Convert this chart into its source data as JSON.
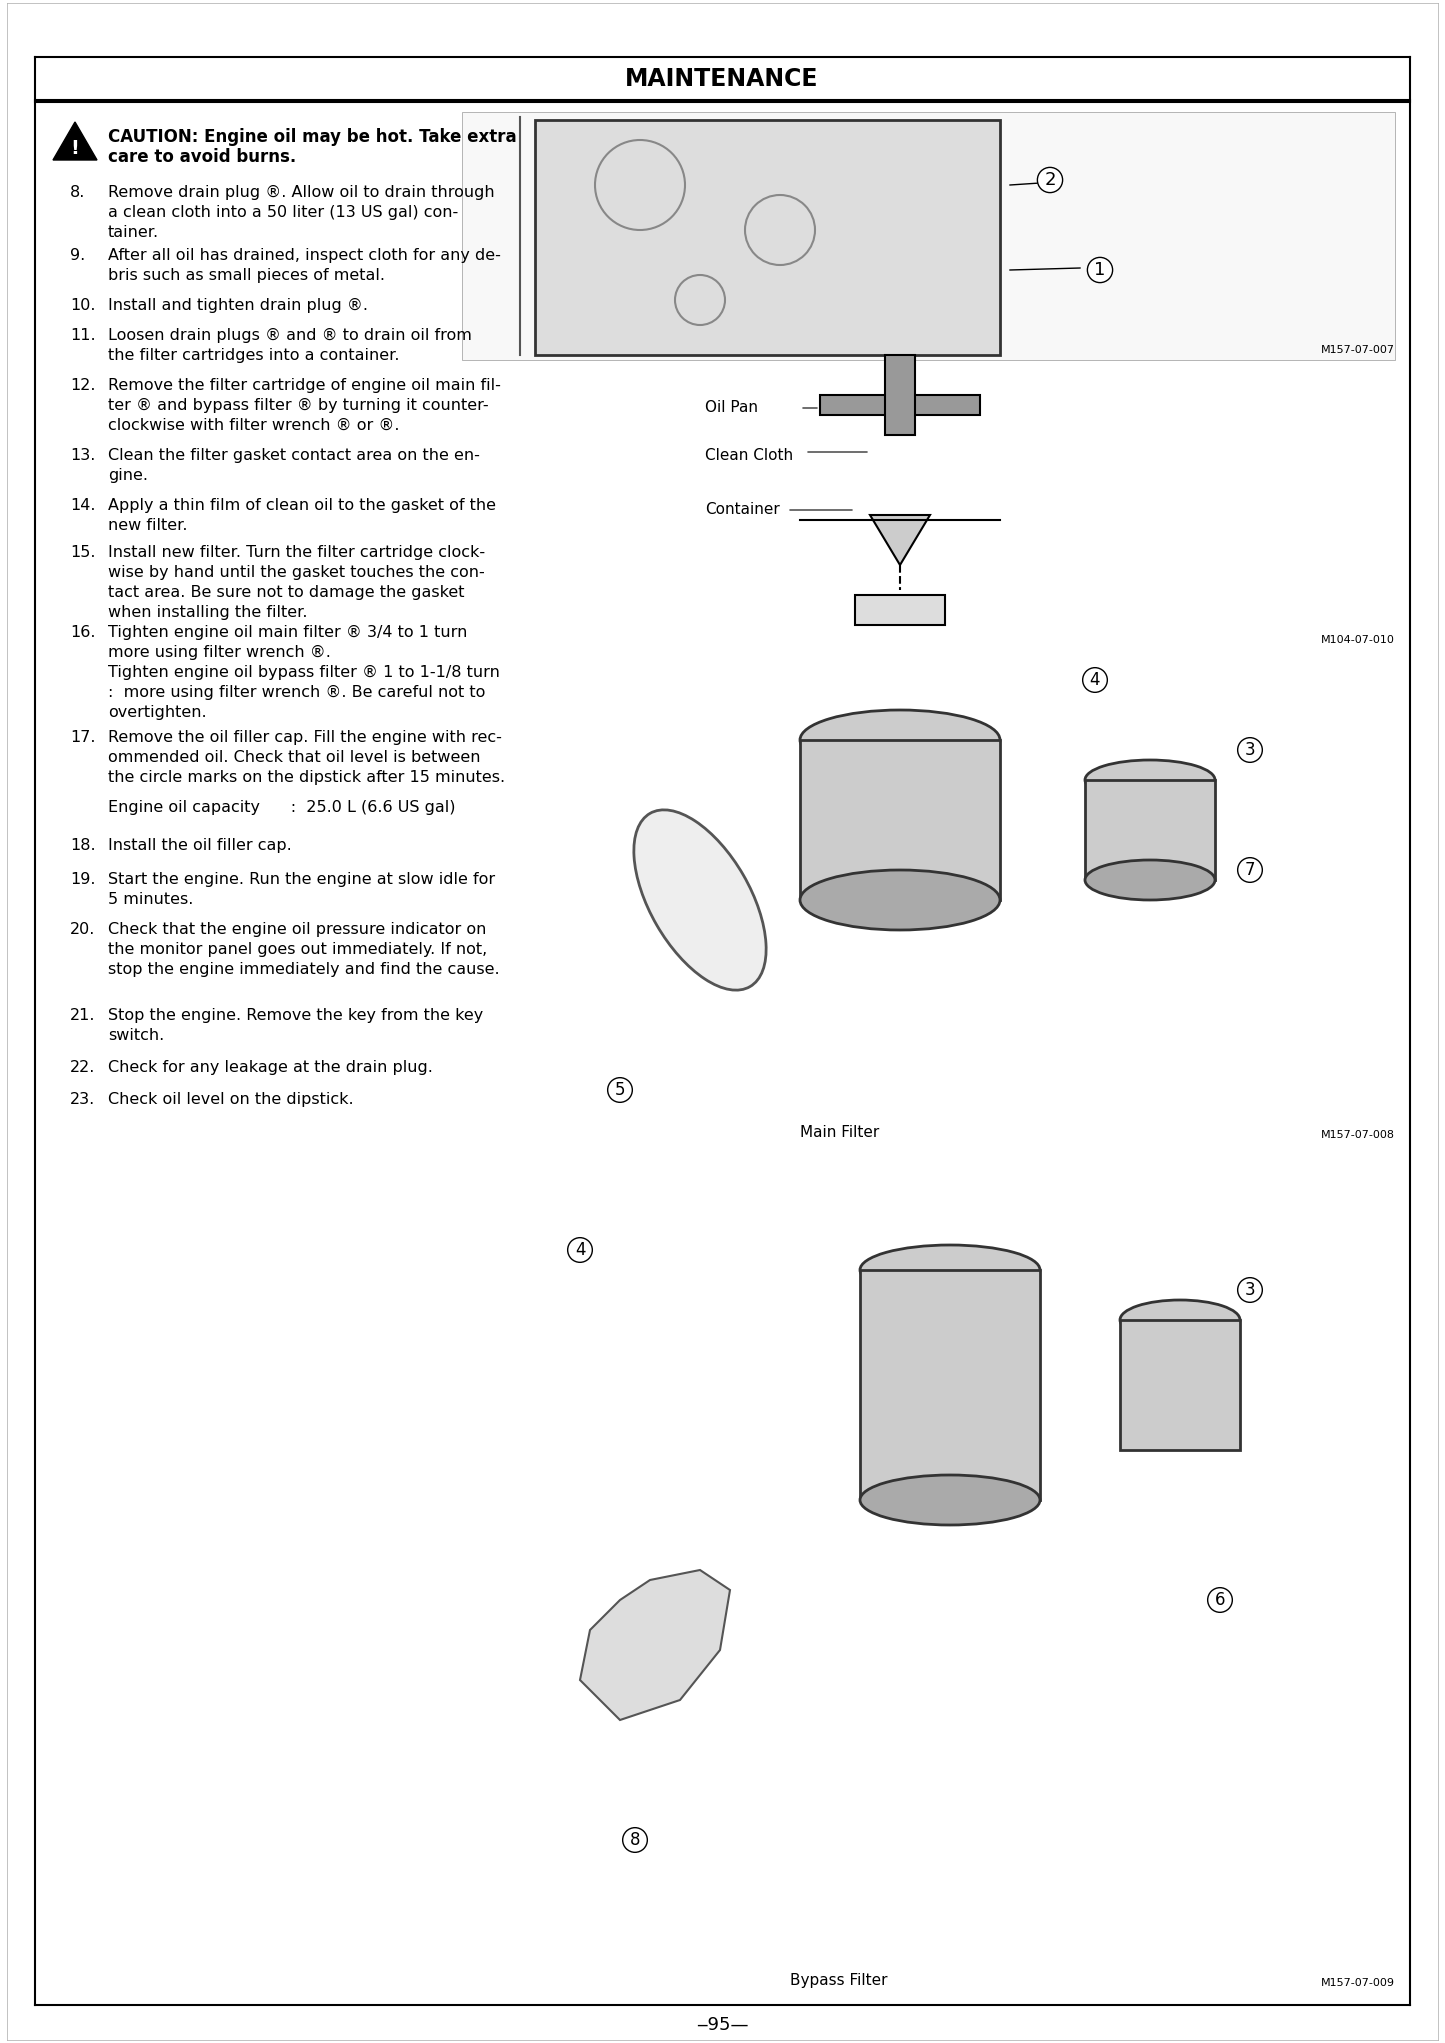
{
  "page_title": "MAINTENANCE",
  "page_number": "‒95—",
  "caution_line1": "CAUTION: Engine oil may be hot. Take extra",
  "caution_line2": "care to avoid burns.",
  "steps": [
    {
      "num": "8.",
      "lines": [
        "Remove drain plug ®. Allow oil to drain through",
        "a clean cloth into a 50 liter (13 US gal) con-",
        "tainer."
      ]
    },
    {
      "num": "9.",
      "lines": [
        "After all oil has drained, inspect cloth for any de-",
        "bris such as small pieces of metal."
      ]
    },
    {
      "num": "10.",
      "lines": [
        "Install and tighten drain plug ®."
      ]
    },
    {
      "num": "11.",
      "lines": [
        "Loosen drain plugs ® and ® to drain oil from",
        "the filter cartridges into a container."
      ]
    },
    {
      "num": "12.",
      "lines": [
        "Remove the filter cartridge of engine oil main fil-",
        "ter ® and bypass filter ® by turning it counter-",
        "clockwise with filter wrench ® or ®."
      ]
    },
    {
      "num": "13.",
      "lines": [
        "Clean the filter gasket contact area on the en-",
        "gine."
      ]
    },
    {
      "num": "14.",
      "lines": [
        "Apply a thin film of clean oil to the gasket of the",
        "new filter."
      ]
    },
    {
      "num": "15.",
      "lines": [
        "Install new filter. Turn the filter cartridge clock-",
        "wise by hand until the gasket touches the con-",
        "tact area. Be sure not to damage the gasket",
        "when installing the filter."
      ]
    },
    {
      "num": "16.",
      "lines": [
        "Tighten engine oil main filter ® 3/4 to 1 turn",
        "more using filter wrench ®.",
        "Tighten engine oil bypass filter ® 1 to 1-1/8 turn",
        ":  more using filter wrench ®. Be careful not to",
        "overtighten."
      ]
    },
    {
      "num": "17.",
      "lines": [
        "Remove the oil filler cap. Fill the engine with rec-",
        "ommended oil. Check that oil level is between",
        "the circle marks on the dipstick after 15 minutes."
      ]
    },
    {
      "num": "",
      "lines": [
        "Engine oil capacity      :  25.0 L (6.6 US gal)"
      ]
    },
    {
      "num": "18.",
      "lines": [
        "Install the oil filler cap."
      ]
    },
    {
      "num": "19.",
      "lines": [
        "Start the engine. Run the engine at slow idle for",
        "5 minutes."
      ]
    },
    {
      "num": "20.",
      "lines": [
        "Check that the engine oil pressure indicator on",
        "the monitor panel goes out immediately. If not,",
        "stop the engine immediately and find the cause."
      ]
    },
    {
      "num": "21.",
      "lines": [
        "Stop the engine. Remove the key from the key",
        "switch."
      ]
    },
    {
      "num": "22.",
      "lines": [
        "Check for any leakage at the drain plug."
      ]
    },
    {
      "num": "23.",
      "lines": [
        "Check oil level on the dipstick."
      ]
    }
  ],
  "fig1_label": "M157-07-007",
  "fig2_labels": [
    "Oil Pan",
    "Clean Cloth",
    "Container"
  ],
  "fig2_code": "M104-07-010",
  "fig3_label": "Main Filter",
  "fig3_code": "M157-07-008",
  "fig4_label": "Bypass Filter",
  "fig4_code": "M157-07-009",
  "bg_color": "#ffffff"
}
